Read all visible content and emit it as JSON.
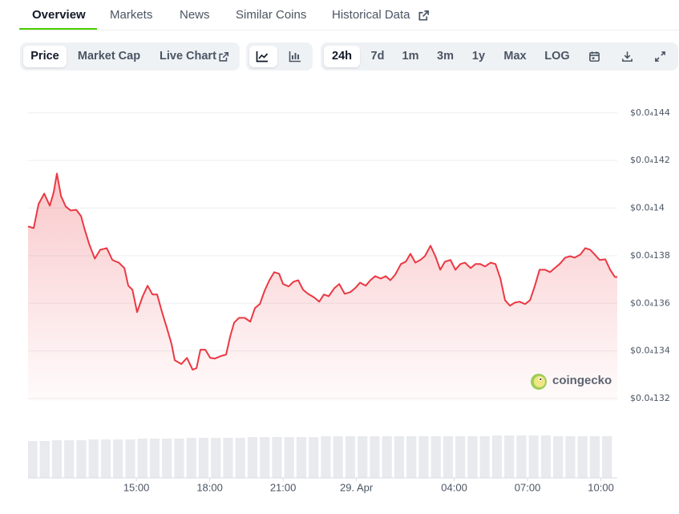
{
  "tabs": [
    "Overview",
    "Markets",
    "News",
    "Similar Coins",
    "Historical Data"
  ],
  "chart_tabs": [
    "Price",
    "Market Cap",
    "Live Chart"
  ],
  "ranges": [
    "24h",
    "7d",
    "1m",
    "3m",
    "1y",
    "Max",
    "LOG"
  ],
  "watermark": "coingecko",
  "chart_data": {
    "type": "line",
    "color": "#ea3943",
    "x": [
      10.57,
      10.8,
      11,
      11.23,
      11.46,
      11.62,
      11.75,
      11.92,
      12.11,
      12.31,
      12.54,
      12.74,
      12.87,
      13.07,
      13.3,
      13.52,
      13.79,
      14.02,
      14.28,
      14.51,
      14.67,
      14.84,
      15.03,
      15.26,
      15.46,
      15.66,
      15.85,
      16.05,
      16.25,
      16.44,
      16.57,
      16.84,
      17.07,
      17.3,
      17.46,
      17.62,
      17.82,
      18.02,
      18.21,
      18.44,
      18.67,
      18.84,
      19,
      19.2,
      19.43,
      19.66,
      19.85,
      20.05,
      20.25,
      20.44,
      20.64,
      20.84,
      21,
      21.23,
      21.43,
      21.62,
      21.82,
      22.02,
      22.28,
      22.48,
      22.67,
      22.87,
      23.1,
      23.3,
      23.52,
      23.75,
      23.95,
      24.15,
      24.38,
      24.57,
      24.77,
      25,
      25.2,
      25.39,
      25.59,
      25.82,
      26.02,
      26.21,
      26.41,
      26.61,
      26.8,
      27.03,
      27.23,
      27.43,
      27.62,
      27.85,
      28.05,
      28.25,
      28.44,
      28.67,
      28.87,
      29.07,
      29.26,
      29.49,
      29.69,
      29.89,
      30.08,
      30.28,
      30.48,
      30.67,
      30.9,
      31.1,
      31.3,
      31.49,
      31.72,
      31.92,
      32.11,
      32.31,
      32.54,
      32.74,
      32.93,
      33.16,
      33.36,
      33.56,
      33.75,
      33.95,
      34.18,
      34.38,
      34.57,
      34.67
    ],
    "values": [
      1.3923e-05,
      1.3916e-05,
      1.4017e-05,
      1.4061e-05,
      1.401e-05,
      1.4067e-05,
      1.4145e-05,
      1.405e-05,
      1.4007e-05,
      1.399e-05,
      1.3993e-05,
      1.3966e-05,
      1.3916e-05,
      1.3849e-05,
      1.3788e-05,
      1.3825e-05,
      1.3832e-05,
      1.3782e-05,
      1.3771e-05,
      1.3748e-05,
      1.3674e-05,
      1.3657e-05,
      1.3563e-05,
      1.363e-05,
      1.3674e-05,
      1.3637e-05,
      1.3637e-05,
      1.3563e-05,
      1.3496e-05,
      1.3429e-05,
      1.3361e-05,
      1.3345e-05,
      1.3371e-05,
      1.3321e-05,
      1.3328e-05,
      1.3405e-05,
      1.3405e-05,
      1.3371e-05,
      1.3368e-05,
      1.3378e-05,
      1.3385e-05,
      1.3462e-05,
      1.3519e-05,
      1.3539e-05,
      1.3539e-05,
      1.3523e-05,
      1.358e-05,
      1.3597e-05,
      1.3654e-05,
      1.3697e-05,
      1.3731e-05,
      1.3724e-05,
      1.3681e-05,
      1.3671e-05,
      1.3691e-05,
      1.3697e-05,
      1.3657e-05,
      1.364e-05,
      1.3624e-05,
      1.3607e-05,
      1.3637e-05,
      1.363e-05,
      1.3664e-05,
      1.3681e-05,
      1.364e-05,
      1.3647e-05,
      1.3664e-05,
      1.3687e-05,
      1.3674e-05,
      1.3697e-05,
      1.3714e-05,
      1.3704e-05,
      1.3714e-05,
      1.3697e-05,
      1.3721e-05,
      1.3765e-05,
      1.3775e-05,
      1.3808e-05,
      1.3771e-05,
      1.3782e-05,
      1.3798e-05,
      1.3842e-05,
      1.3798e-05,
      1.3741e-05,
      1.3775e-05,
      1.3782e-05,
      1.3741e-05,
      1.3765e-05,
      1.3771e-05,
      1.3748e-05,
      1.3765e-05,
      1.3765e-05,
      1.3755e-05,
      1.3771e-05,
      1.3765e-05,
      1.3704e-05,
      1.3613e-05,
      1.359e-05,
      1.3603e-05,
      1.3607e-05,
      1.3597e-05,
      1.3613e-05,
      1.3674e-05,
      1.3741e-05,
      1.3741e-05,
      1.3731e-05,
      1.3748e-05,
      1.3765e-05,
      1.3792e-05,
      1.3798e-05,
      1.3792e-05,
      1.3805e-05,
      1.3832e-05,
      1.3825e-05,
      1.3805e-05,
      1.3782e-05,
      1.3785e-05,
      1.3741e-05,
      1.3711e-05,
      1.3711e-05
    ],
    "xlim": [
      10.57,
      34.67
    ],
    "xticks": [
      {
        "value": 15,
        "label": "15:00"
      },
      {
        "value": 18,
        "label": "18:00"
      },
      {
        "value": 21,
        "label": "21:00"
      },
      {
        "value": 24,
        "label": "29. Apr"
      },
      {
        "value": 28,
        "label": "04:00"
      },
      {
        "value": 31,
        "label": "07:00"
      },
      {
        "value": 34,
        "label": "10:00"
      }
    ],
    "ylim": [
      1.319e-05,
      1.447e-05
    ],
    "yticks": [
      {
        "value": 1.44e-05,
        "label": "$0.0₄144"
      },
      {
        "value": 1.42e-05,
        "label": "$0.0₄142"
      },
      {
        "value": 1.4e-05,
        "label": "$0.0₄14"
      },
      {
        "value": 1.38e-05,
        "label": "$0.0₄138"
      },
      {
        "value": 1.36e-05,
        "label": "$0.0₄136"
      },
      {
        "value": 1.34e-05,
        "label": "$0.0₄134"
      },
      {
        "value": 1.32e-05,
        "label": "$0.0₄132"
      }
    ],
    "grid": true,
    "volume": {
      "color": "#e8eaed",
      "ylim": [
        0,
        60
      ],
      "x": [
        10.75,
        11.25,
        11.75,
        12.25,
        12.75,
        13.25,
        13.75,
        14.25,
        14.75,
        15.25,
        15.75,
        16.25,
        16.75,
        17.25,
        17.75,
        18.25,
        18.75,
        19.25,
        19.75,
        20.25,
        20.75,
        21.25,
        21.75,
        22.25,
        22.75,
        23.25,
        23.75,
        24.25,
        24.75,
        25.25,
        25.75,
        26.25,
        26.75,
        27.25,
        27.75,
        28.25,
        28.75,
        29.25,
        29.75,
        30.25,
        30.75,
        31.25,
        31.75,
        32.25,
        32.75,
        33.25,
        33.75,
        34.25
      ],
      "values": [
        46,
        46,
        47,
        47,
        47,
        48,
        48,
        48,
        48,
        49,
        49,
        49,
        49,
        50,
        50,
        50,
        50,
        50,
        51,
        51,
        51,
        51,
        51,
        51,
        52,
        52,
        52,
        52,
        52,
        52,
        52,
        52,
        52,
        52,
        52,
        52,
        52,
        52,
        53,
        53,
        53,
        53,
        53,
        52,
        52,
        52,
        52,
        52
      ]
    }
  }
}
